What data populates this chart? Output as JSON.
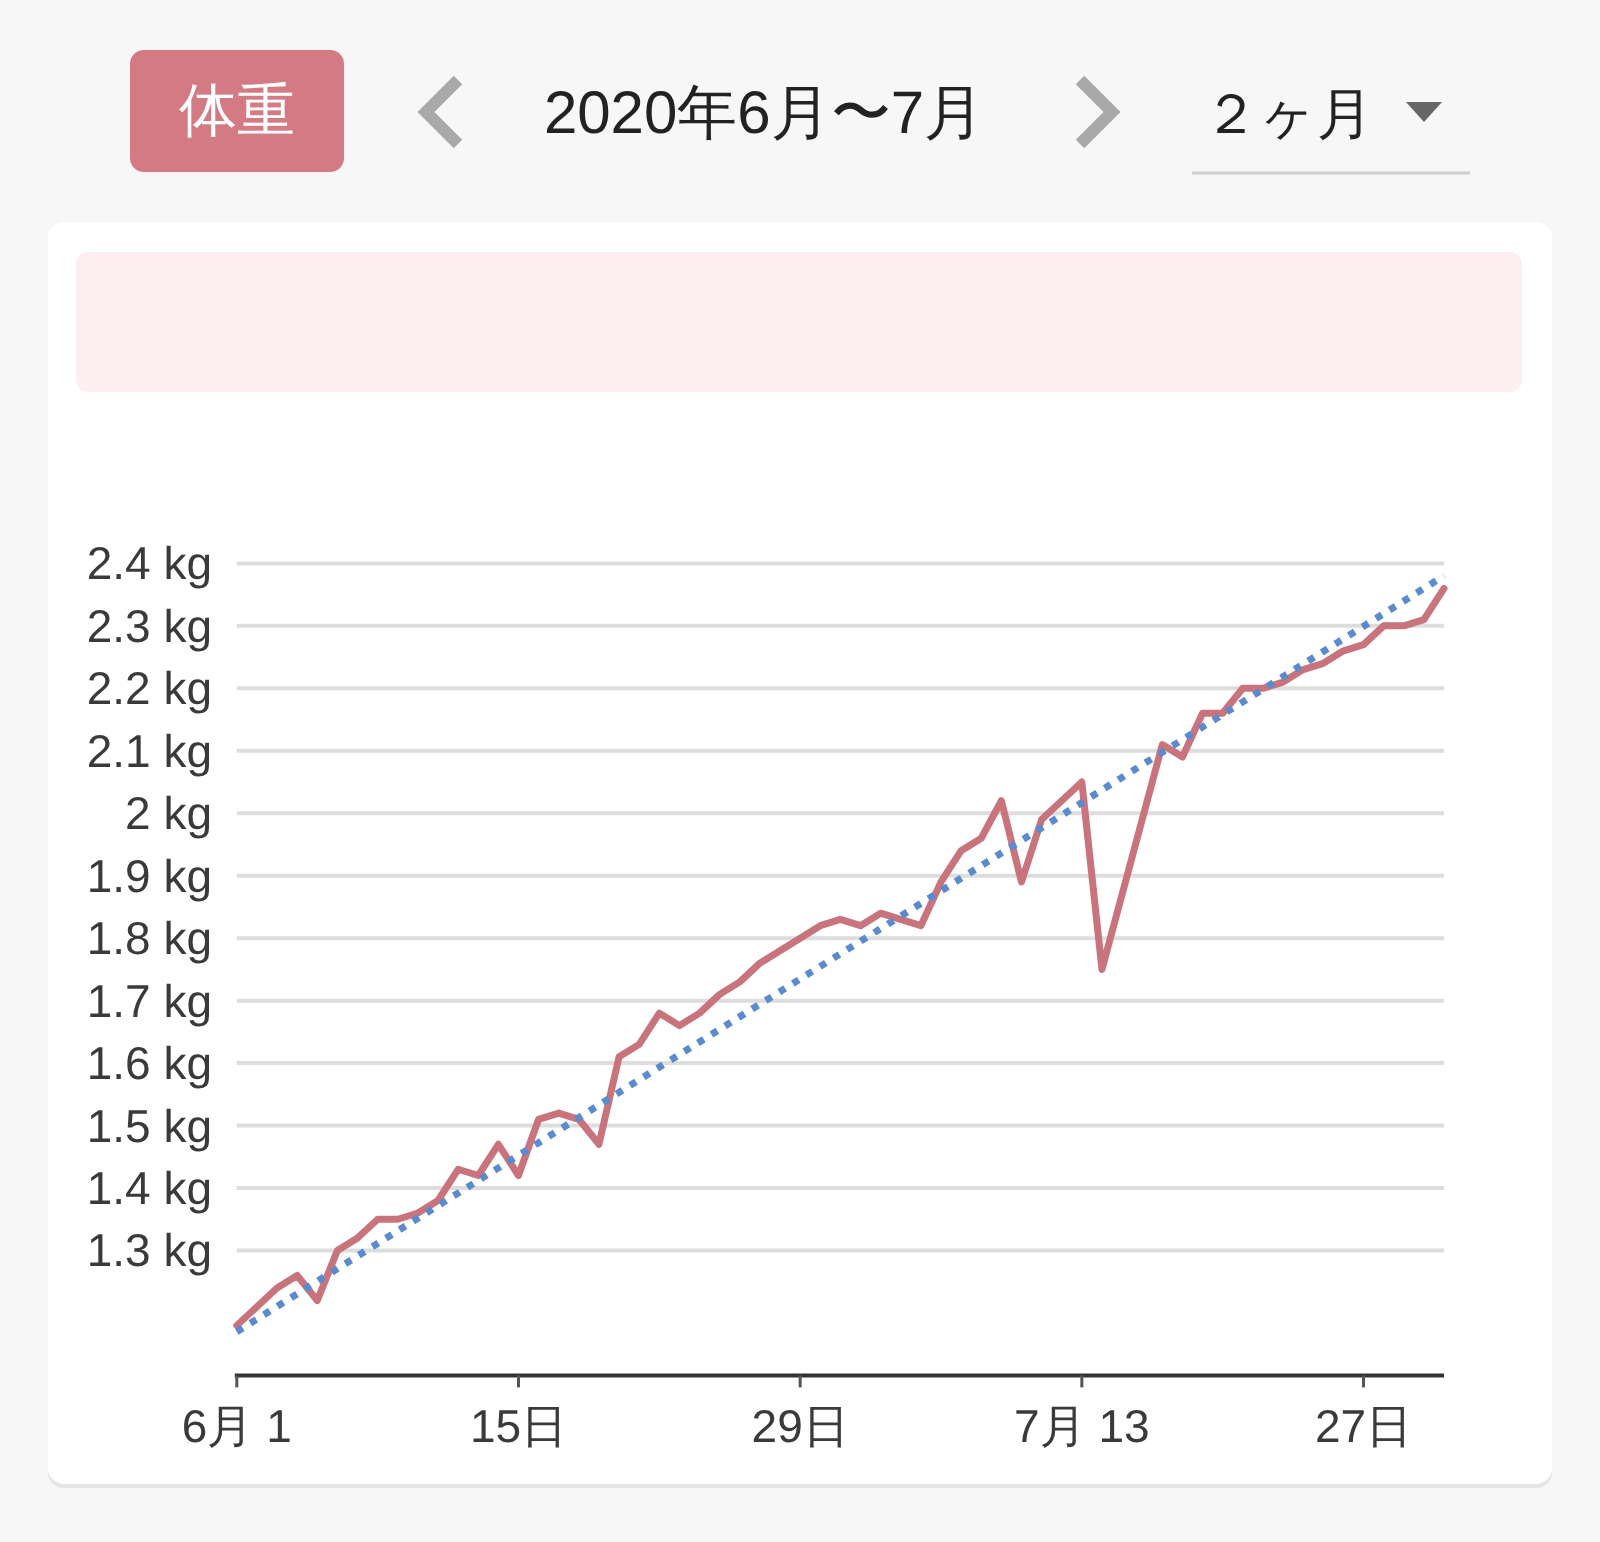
{
  "chart_data": {
    "type": "line",
    "title": "体重",
    "subtitle": "2020年6月〜7月",
    "annotations": [
      "２ヶ月"
    ],
    "xlim": [
      "2020-06-01",
      "2020-07-31"
    ],
    "xticks": [
      {
        "value": "2020-06-01",
        "label": "6月 1"
      },
      {
        "value": "2020-06-15",
        "label": "15日"
      },
      {
        "value": "2020-06-29",
        "label": "29日"
      },
      {
        "value": "2020-07-13",
        "label": "7月 13"
      },
      {
        "value": "2020-07-27",
        "label": "27日"
      }
    ],
    "ylim": [
      1.1,
      2.4
    ],
    "yticks": [
      {
        "value": 1.3,
        "label": "1.3 kg"
      },
      {
        "value": 1.4,
        "label": "1.4 kg"
      },
      {
        "value": 1.5,
        "label": "1.5 kg"
      },
      {
        "value": 1.6,
        "label": "1.6 kg"
      },
      {
        "value": 1.7,
        "label": "1.7 kg"
      },
      {
        "value": 1.8,
        "label": "1.8 kg"
      },
      {
        "value": 1.9,
        "label": "1.9 kg"
      },
      {
        "value": 2,
        "label": "2 kg"
      },
      {
        "value": 2.1,
        "label": "2.1 kg"
      },
      {
        "value": 2.2,
        "label": "2.2 kg"
      },
      {
        "value": 2.3,
        "label": "2.3 kg"
      },
      {
        "value": 2.4,
        "label": "2.4 kg"
      }
    ],
    "grid": "y",
    "series": [
      {
        "color": "#c9747c",
        "line_style": "solid",
        "x": [
          "2020-06-01",
          "2020-06-02",
          "2020-06-03",
          "2020-06-04",
          "2020-06-05",
          "2020-06-06",
          "2020-06-07",
          "2020-06-08",
          "2020-06-09",
          "2020-06-10",
          "2020-06-11",
          "2020-06-12",
          "2020-06-13",
          "2020-06-14",
          "2020-06-15",
          "2020-06-16",
          "2020-06-17",
          "2020-06-18",
          "2020-06-19",
          "2020-06-20",
          "2020-06-21",
          "2020-06-22",
          "2020-06-23",
          "2020-06-24",
          "2020-06-25",
          "2020-06-26",
          "2020-06-27",
          "2020-06-28",
          "2020-06-29",
          "2020-06-30",
          "2020-07-01",
          "2020-07-02",
          "2020-07-03",
          "2020-07-04",
          "2020-07-05",
          "2020-07-06",
          "2020-07-07",
          "2020-07-08",
          "2020-07-09",
          "2020-07-10",
          "2020-07-11",
          "2020-07-12",
          "2020-07-13",
          "2020-07-14",
          "2020-07-17",
          "2020-07-18",
          "2020-07-19",
          "2020-07-20",
          "2020-07-21",
          "2020-07-22",
          "2020-07-23",
          "2020-07-24",
          "2020-07-25",
          "2020-07-26",
          "2020-07-27",
          "2020-07-28",
          "2020-07-29",
          "2020-07-30",
          "2020-07-31"
        ],
        "values": [
          1.18,
          1.21,
          1.24,
          1.26,
          1.22,
          1.3,
          1.32,
          1.35,
          1.35,
          1.36,
          1.38,
          1.43,
          1.42,
          1.47,
          1.42,
          1.51,
          1.52,
          1.51,
          1.47,
          1.61,
          1.63,
          1.68,
          1.66,
          1.68,
          1.71,
          1.73,
          1.76,
          1.78,
          1.8,
          1.82,
          1.83,
          1.82,
          1.84,
          1.83,
          1.82,
          1.89,
          1.94,
          1.96,
          2.02,
          1.89,
          1.99,
          2.02,
          2.05,
          1.75,
          2.11,
          2.09,
          2.16,
          2.16,
          2.2,
          2.2,
          2.21,
          2.23,
          2.24,
          2.26,
          2.27,
          2.3,
          2.3,
          2.31,
          2.36
        ]
      },
      {
        "type": "line",
        "color": "#5b8bcf",
        "line_style": "dotted",
        "x": [
          "2020-06-01",
          "2020-07-31"
        ],
        "values": [
          1.17,
          2.38
        ]
      }
    ]
  }
}
